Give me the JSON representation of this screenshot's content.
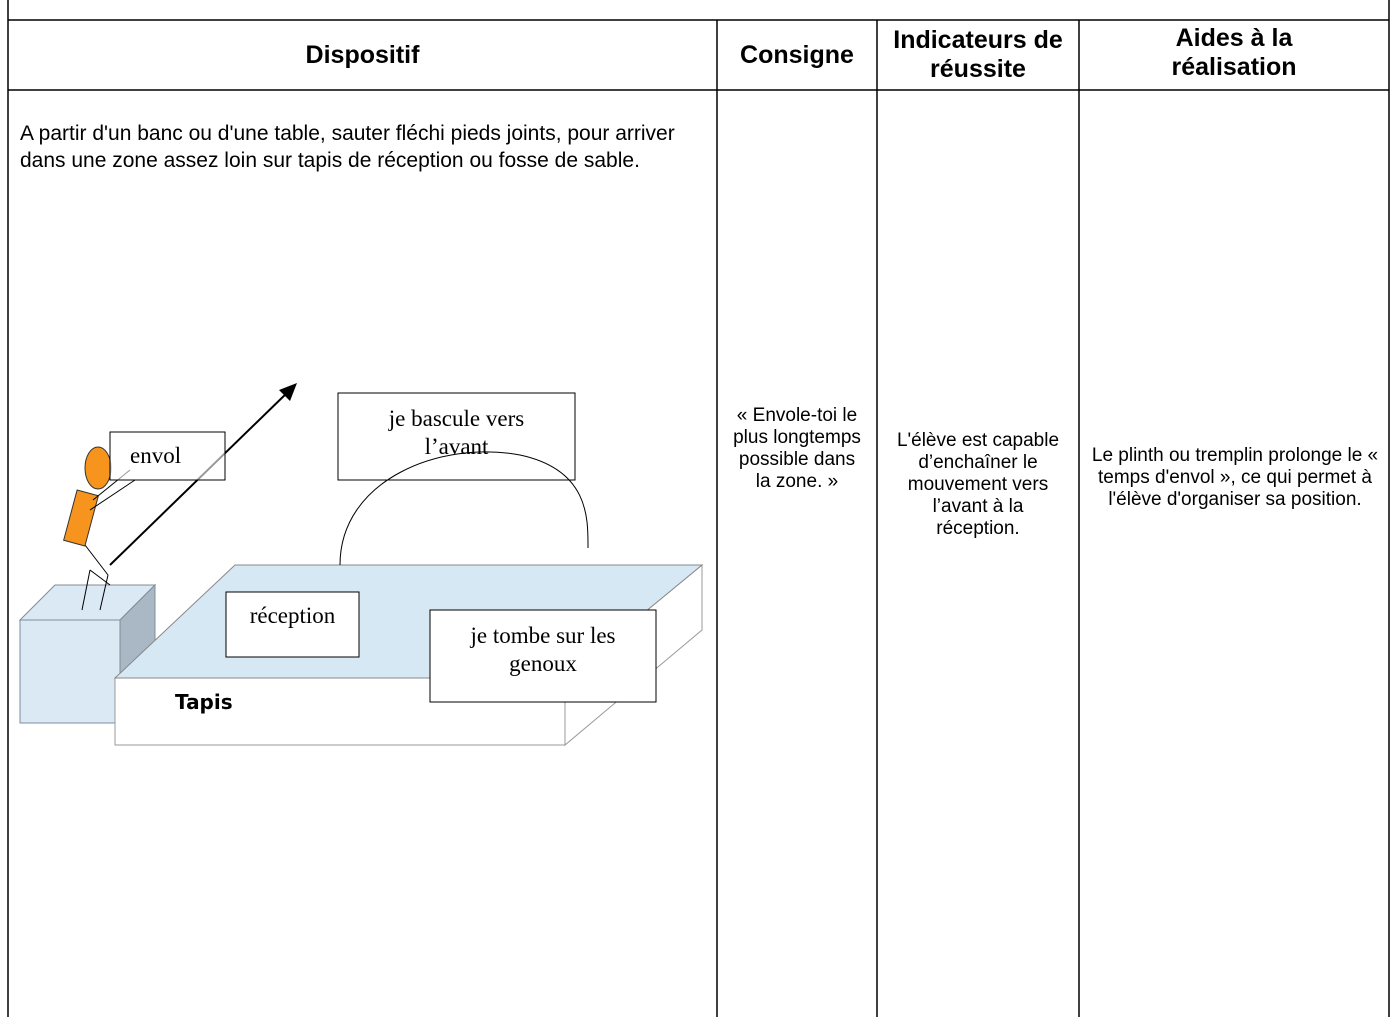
{
  "table": {
    "headers": [
      "Dispositif",
      "Consigne",
      "Indicateurs de réussite",
      "Aides à la réalisation"
    ],
    "rows": [
      [
        "A partir d'un banc ou d'une table, sauter fléchi pieds joints, pour arriver dans une zone assez loin sur tapis de réception ou fosse de sable.",
        "« Envole-toi le plus longtemps possible dans la zone. »",
        "L'élève est capable d’enchaîner le mouvement vers l’avant à la réception.",
        "Le plinth ou tremplin prolonge le « temps d'envol », ce qui permet à l'élève d'organiser sa position."
      ]
    ]
  },
  "diagram": {
    "labels": {
      "envol": "envol",
      "bascule": "je bascule vers l’avant",
      "reception": "réception",
      "genoux": "je tombe sur les genoux",
      "tapis": "Tapis"
    }
  }
}
